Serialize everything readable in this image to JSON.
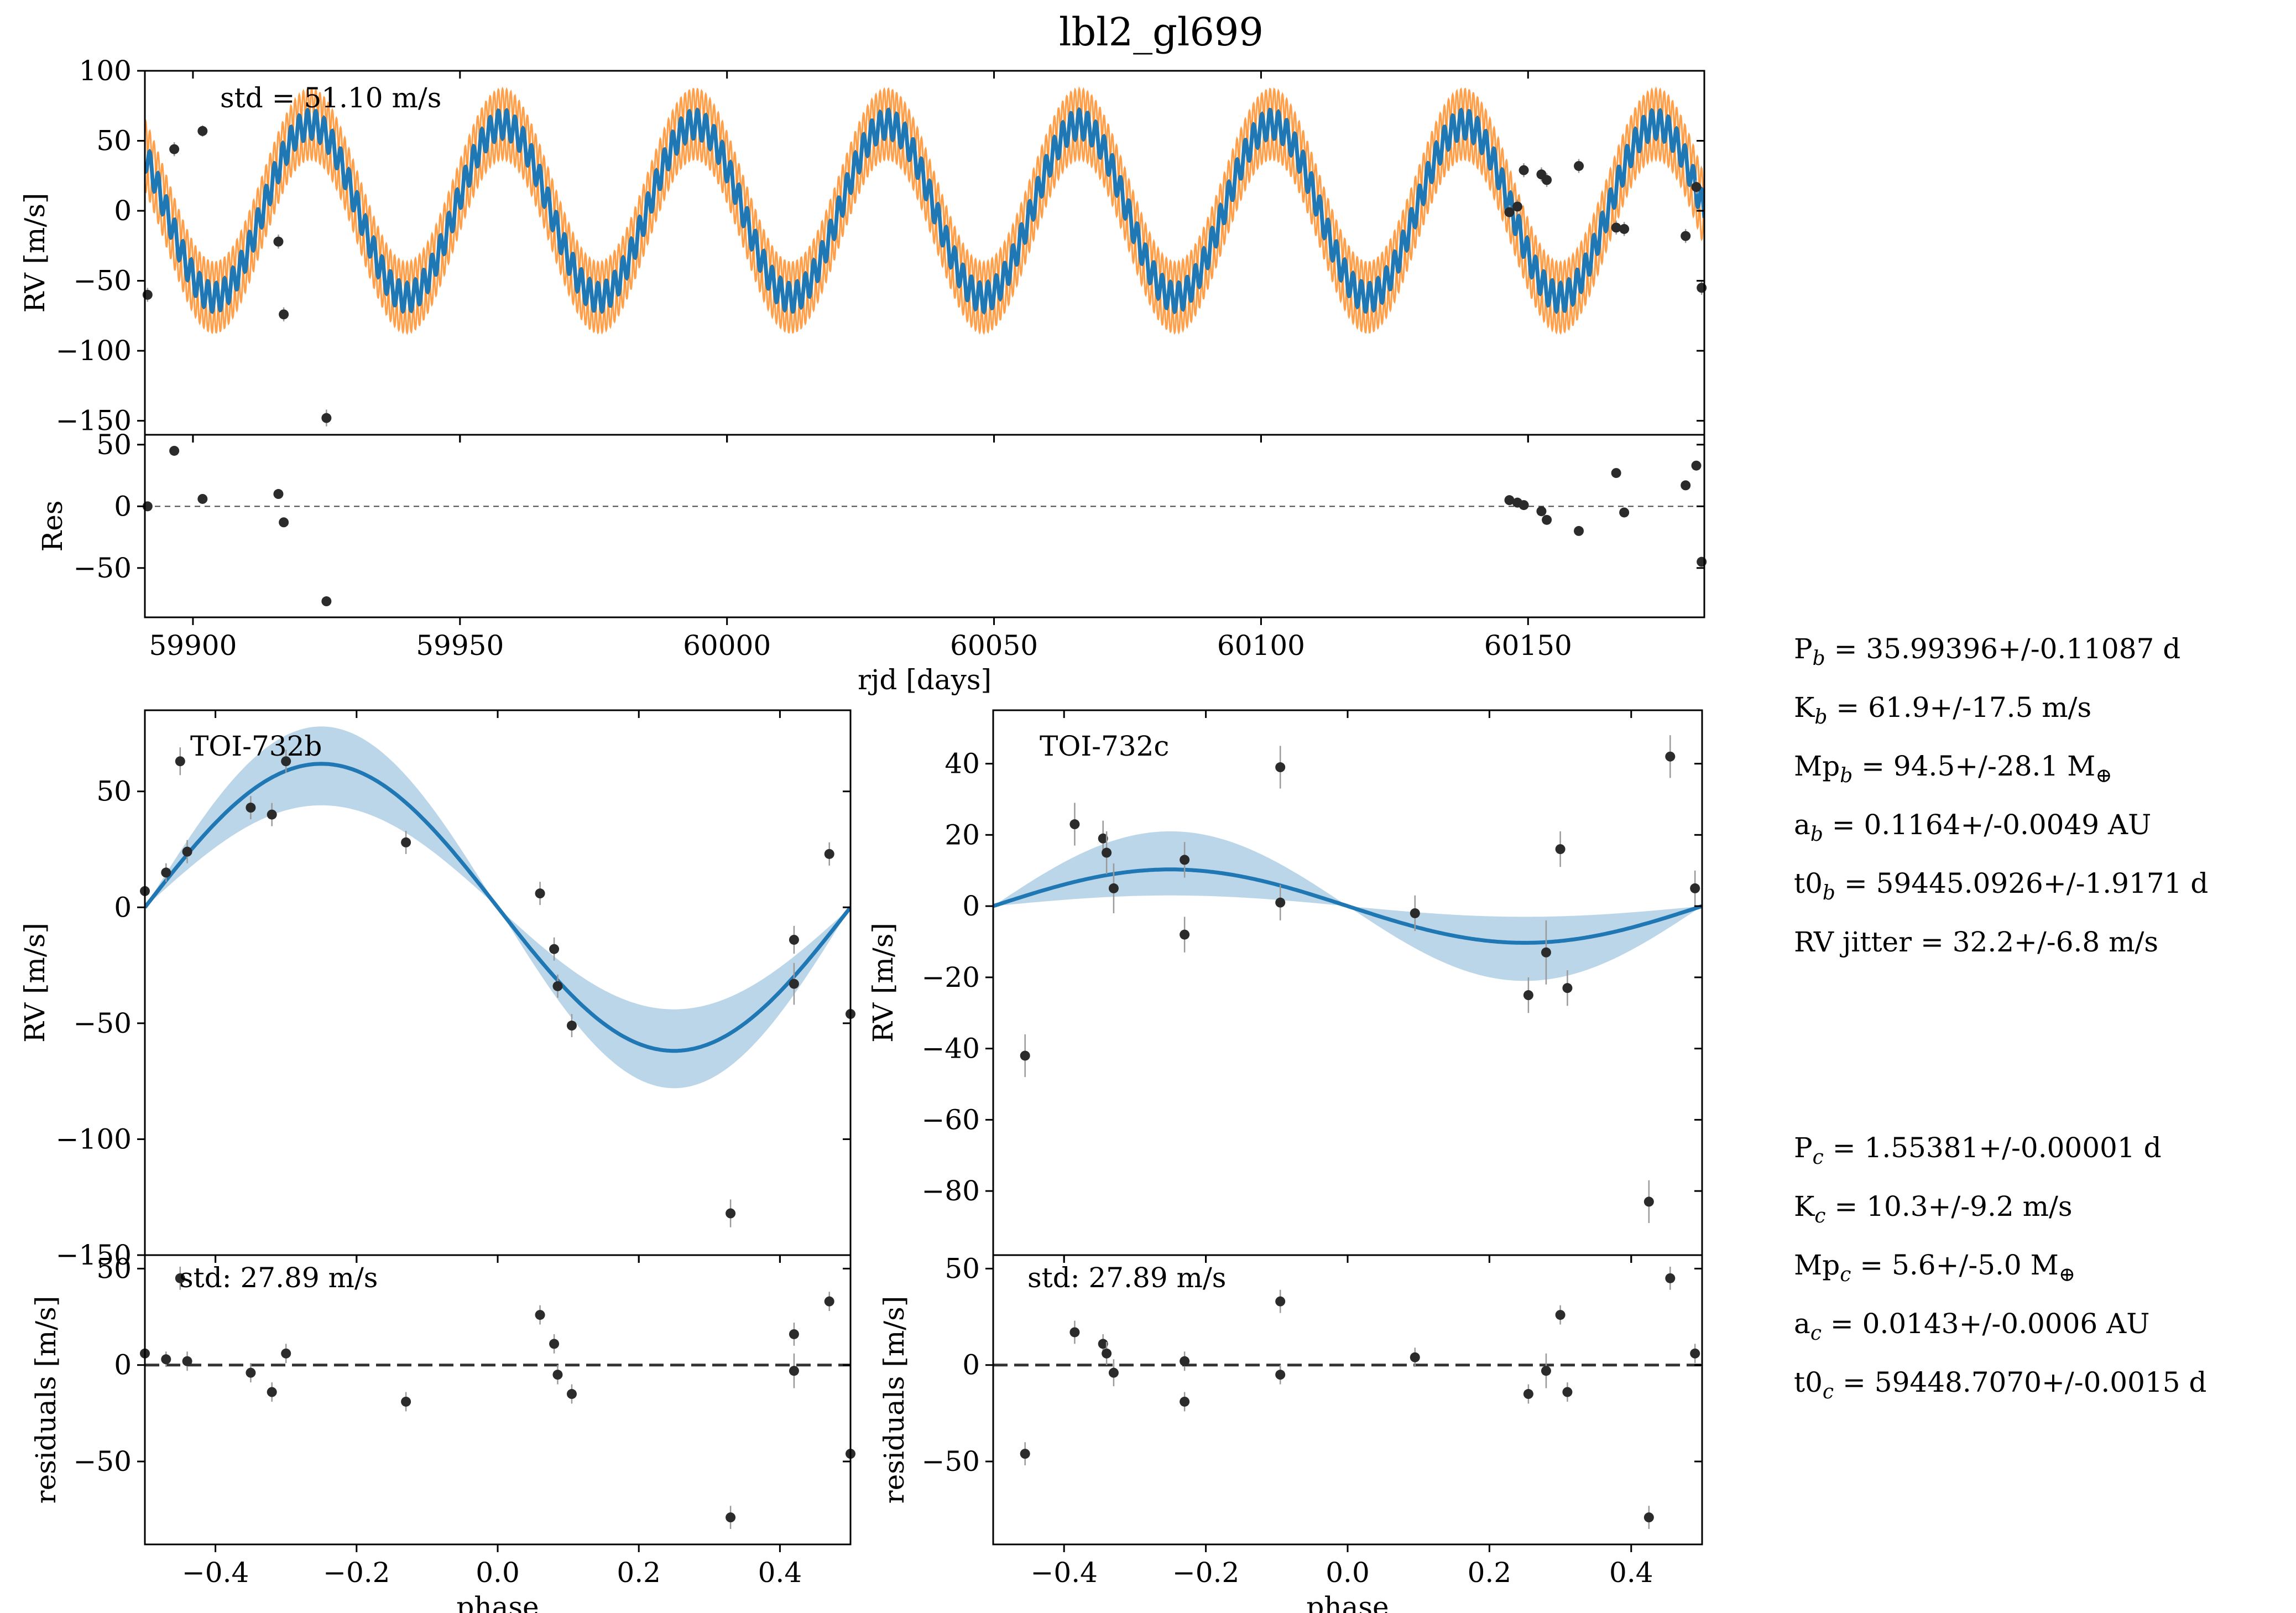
{
  "title": "lbl2_gl699",
  "colors": {
    "model": "#1f77b4",
    "band": "#ff7f0e",
    "shade": "#1f77b4",
    "points": "#2b2b2b"
  },
  "chart_data": [
    {
      "id": "rv_time",
      "type": "line",
      "xlabel": "",
      "ylabel": "RV [m/s]",
      "xlim": [
        59891,
        60183
      ],
      "ylim": [
        -160,
        100
      ],
      "xticks": [
        59900,
        59950,
        60000,
        60050,
        60100,
        60150
      ],
      "xtick_labels": [
        "",
        "",
        "",
        "",
        "",
        ""
      ],
      "yticks": [
        100,
        50,
        0,
        -50,
        -100,
        -150
      ],
      "ytick_labels": [
        "100",
        "50",
        "0",
        "−50",
        "−100",
        "−150"
      ],
      "annotation": "std = 51.10 m/s",
      "model": {
        "offset": 0,
        "Kb": 61.9,
        "Pb": 35.99396,
        "t0b": 59445.0926,
        "Kc": 10.3,
        "Pc": 1.55381,
        "t0c": 59448.707,
        "band": 15
      },
      "points": [
        {
          "x": 59891.5,
          "y": -60,
          "err": 5
        },
        {
          "x": 59896.5,
          "y": 44,
          "err": 5
        },
        {
          "x": 59901.8,
          "y": 57,
          "err": 4
        },
        {
          "x": 59916.0,
          "y": -22,
          "err": 5
        },
        {
          "x": 59917.0,
          "y": -74,
          "err": 5
        },
        {
          "x": 59925.0,
          "y": -148,
          "err": 6
        },
        {
          "x": 60146.5,
          "y": -1,
          "err": 5
        },
        {
          "x": 60148.0,
          "y": 3,
          "err": 5
        },
        {
          "x": 60149.2,
          "y": 29,
          "err": 5
        },
        {
          "x": 60152.5,
          "y": 26,
          "err": 5
        },
        {
          "x": 60153.5,
          "y": 22,
          "err": 5
        },
        {
          "x": 60159.5,
          "y": 32,
          "err": 5
        },
        {
          "x": 60166.5,
          "y": -12,
          "err": 5
        },
        {
          "x": 60168.0,
          "y": -13,
          "err": 5
        },
        {
          "x": 60179.5,
          "y": -18,
          "err": 5
        },
        {
          "x": 60181.5,
          "y": 17,
          "err": 5
        },
        {
          "x": 60182.5,
          "y": -55,
          "err": 5
        }
      ]
    },
    {
      "id": "res_time",
      "type": "scatter",
      "xlabel": "rjd [days]",
      "ylabel": "Res",
      "xlim": [
        59891,
        60183
      ],
      "ylim": [
        -90,
        58
      ],
      "xticks": [
        59900,
        59950,
        60000,
        60050,
        60100,
        60150
      ],
      "xtick_labels": [
        "59900",
        "59950",
        "60000",
        "60050",
        "60100",
        "60150"
      ],
      "yticks": [
        50,
        0,
        -50
      ],
      "ytick_labels": [
        "50",
        "0",
        "−50"
      ],
      "zero_line": true,
      "points": [
        {
          "x": 59891.5,
          "y": 0
        },
        {
          "x": 59896.5,
          "y": 45
        },
        {
          "x": 59901.8,
          "y": 6
        },
        {
          "x": 59916.0,
          "y": 10
        },
        {
          "x": 59917.0,
          "y": -13
        },
        {
          "x": 59925.0,
          "y": -77
        },
        {
          "x": 60146.5,
          "y": 5
        },
        {
          "x": 60148.0,
          "y": 3
        },
        {
          "x": 60149.2,
          "y": 1
        },
        {
          "x": 60152.5,
          "y": -4
        },
        {
          "x": 60153.5,
          "y": -11
        },
        {
          "x": 60159.5,
          "y": -20
        },
        {
          "x": 60166.5,
          "y": 27
        },
        {
          "x": 60168.0,
          "y": -5
        },
        {
          "x": 60179.5,
          "y": 17
        },
        {
          "x": 60181.5,
          "y": 33
        },
        {
          "x": 60182.5,
          "y": -45
        }
      ]
    },
    {
      "id": "phase_b",
      "type": "line",
      "xlabel": "",
      "ylabel": "RV [m/s]",
      "xlim": [
        -0.5,
        0.5
      ],
      "ylim": [
        -150,
        85
      ],
      "xticks": [
        -0.4,
        -0.2,
        0.0,
        0.2,
        0.4
      ],
      "xtick_labels": [
        "",
        "",
        "",
        "",
        ""
      ],
      "yticks": [
        50,
        0,
        -50,
        -100,
        -150
      ],
      "ytick_labels": [
        "50",
        "0",
        "−50",
        "−100",
        "−150"
      ],
      "annotation": "TOI-732b",
      "model": {
        "K": 61.9,
        "K_hi": 78,
        "K_lo": 44
      },
      "points": [
        {
          "x": -0.5,
          "y": 7,
          "err": 5
        },
        {
          "x": -0.47,
          "y": 15,
          "err": 4
        },
        {
          "x": -0.45,
          "y": 63,
          "err": 6
        },
        {
          "x": -0.44,
          "y": 24,
          "err": 5
        },
        {
          "x": -0.35,
          "y": 43,
          "err": 5
        },
        {
          "x": -0.32,
          "y": 40,
          "err": 5
        },
        {
          "x": -0.3,
          "y": 63,
          "err": 5
        },
        {
          "x": -0.13,
          "y": 28,
          "err": 5
        },
        {
          "x": 0.06,
          "y": 6,
          "err": 5
        },
        {
          "x": 0.08,
          "y": -18,
          "err": 5
        },
        {
          "x": 0.085,
          "y": -34,
          "err": 5
        },
        {
          "x": 0.105,
          "y": -51,
          "err": 5
        },
        {
          "x": 0.33,
          "y": -132,
          "err": 6
        },
        {
          "x": 0.42,
          "y": -14,
          "err": 6
        },
        {
          "x": 0.42,
          "y": -33,
          "err": 9
        },
        {
          "x": 0.47,
          "y": 23,
          "err": 5
        },
        {
          "x": 0.5,
          "y": -46,
          "err": 5
        }
      ]
    },
    {
      "id": "phase_c",
      "type": "line",
      "xlabel": "",
      "ylabel": "RV [m/s]",
      "xlim": [
        -0.5,
        0.5
      ],
      "ylim": [
        -98,
        55
      ],
      "xticks": [
        -0.4,
        -0.2,
        0.0,
        0.2,
        0.4
      ],
      "xtick_labels": [
        "",
        "",
        "",
        "",
        ""
      ],
      "yticks": [
        40,
        20,
        0,
        -20,
        -40,
        -60,
        -80
      ],
      "ytick_labels": [
        "40",
        "20",
        "0",
        "−20",
        "−40",
        "−60",
        "−80"
      ],
      "annotation": "TOI-732c",
      "model": {
        "K": 10.3,
        "K_hi": 21,
        "K_lo": 3
      },
      "points": [
        {
          "x": -0.455,
          "y": -42,
          "err": 6
        },
        {
          "x": -0.385,
          "y": 23,
          "err": 6
        },
        {
          "x": -0.345,
          "y": 19,
          "err": 5
        },
        {
          "x": -0.34,
          "y": 15,
          "err": 6
        },
        {
          "x": -0.33,
          "y": 5,
          "err": 7
        },
        {
          "x": -0.23,
          "y": 13,
          "err": 5
        },
        {
          "x": -0.23,
          "y": -8,
          "err": 5
        },
        {
          "x": -0.095,
          "y": 39,
          "err": 6
        },
        {
          "x": -0.095,
          "y": 1,
          "err": 5
        },
        {
          "x": 0.095,
          "y": -2,
          "err": 5
        },
        {
          "x": 0.255,
          "y": -25,
          "err": 5
        },
        {
          "x": 0.28,
          "y": -13,
          "err": 9
        },
        {
          "x": 0.3,
          "y": 16,
          "err": 5
        },
        {
          "x": 0.31,
          "y": -23,
          "err": 5
        },
        {
          "x": 0.425,
          "y": -83,
          "err": 6
        },
        {
          "x": 0.455,
          "y": 42,
          "err": 6
        },
        {
          "x": 0.49,
          "y": 5,
          "err": 5
        }
      ]
    },
    {
      "id": "res_b",
      "type": "scatter",
      "xlabel": "phase",
      "ylabel": "residuals [m/s]",
      "xlim": [
        -0.5,
        0.5
      ],
      "ylim": [
        -93,
        57
      ],
      "xticks": [
        -0.4,
        -0.2,
        0.0,
        0.2,
        0.4
      ],
      "xtick_labels": [
        "−0.4",
        "−0.2",
        "0.0",
        "0.2",
        "0.4"
      ],
      "yticks": [
        50,
        0,
        -50
      ],
      "ytick_labels": [
        "50",
        "0",
        "−50"
      ],
      "annotation": "std: 27.89 m/s",
      "zero_line": true,
      "points": [
        {
          "x": -0.5,
          "y": 6,
          "err": 5
        },
        {
          "x": -0.47,
          "y": 3,
          "err": 4
        },
        {
          "x": -0.45,
          "y": 45,
          "err": 6
        },
        {
          "x": -0.44,
          "y": 2,
          "err": 5
        },
        {
          "x": -0.35,
          "y": -4,
          "err": 5
        },
        {
          "x": -0.32,
          "y": -14,
          "err": 5
        },
        {
          "x": -0.3,
          "y": 6,
          "err": 5
        },
        {
          "x": -0.13,
          "y": -19,
          "err": 5
        },
        {
          "x": 0.06,
          "y": 26,
          "err": 5
        },
        {
          "x": 0.08,
          "y": 11,
          "err": 5
        },
        {
          "x": 0.085,
          "y": -5,
          "err": 5
        },
        {
          "x": 0.105,
          "y": -15,
          "err": 5
        },
        {
          "x": 0.33,
          "y": -79,
          "err": 6
        },
        {
          "x": 0.42,
          "y": 16,
          "err": 6
        },
        {
          "x": 0.42,
          "y": -3,
          "err": 9
        },
        {
          "x": 0.47,
          "y": 33,
          "err": 5
        },
        {
          "x": 0.5,
          "y": -46,
          "err": 5
        }
      ]
    },
    {
      "id": "res_c",
      "type": "scatter",
      "xlabel": "phase",
      "ylabel": "residuals [m/s]",
      "xlim": [
        -0.5,
        0.5
      ],
      "ylim": [
        -93,
        57
      ],
      "xticks": [
        -0.4,
        -0.2,
        0.0,
        0.2,
        0.4
      ],
      "xtick_labels": [
        "−0.4",
        "−0.2",
        "0.0",
        "0.2",
        "0.4"
      ],
      "yticks": [
        50,
        0,
        -50
      ],
      "ytick_labels": [
        "50",
        "0",
        "−50"
      ],
      "annotation": "std: 27.89 m/s",
      "zero_line": true,
      "points": [
        {
          "x": -0.455,
          "y": -46,
          "err": 6
        },
        {
          "x": -0.385,
          "y": 17,
          "err": 6
        },
        {
          "x": -0.345,
          "y": 11,
          "err": 5
        },
        {
          "x": -0.34,
          "y": 6,
          "err": 6
        },
        {
          "x": -0.33,
          "y": -4,
          "err": 7
        },
        {
          "x": -0.23,
          "y": 2,
          "err": 5
        },
        {
          "x": -0.23,
          "y": -19,
          "err": 5
        },
        {
          "x": -0.095,
          "y": 33,
          "err": 6
        },
        {
          "x": -0.095,
          "y": -5,
          "err": 5
        },
        {
          "x": 0.095,
          "y": 4,
          "err": 5
        },
        {
          "x": 0.255,
          "y": -15,
          "err": 5
        },
        {
          "x": 0.28,
          "y": -3,
          "err": 9
        },
        {
          "x": 0.3,
          "y": 26,
          "err": 5
        },
        {
          "x": 0.31,
          "y": -14,
          "err": 5
        },
        {
          "x": 0.425,
          "y": -79,
          "err": 6
        },
        {
          "x": 0.455,
          "y": 45,
          "err": 6
        },
        {
          "x": 0.49,
          "y": 6,
          "err": 5
        }
      ]
    }
  ],
  "params_b": [
    {
      "pre": "P",
      "sub": "b",
      "post": " = 35.99396+/-0.11087 d"
    },
    {
      "pre": "K",
      "sub": "b",
      "post": " = 61.9+/-17.5 m/s"
    },
    {
      "pre": "Mp",
      "sub": "b",
      "post": " = 94.5+/-28.1 M",
      "tail": "⊕"
    },
    {
      "pre": "a",
      "sub": "b",
      "post": " = 0.1164+/-0.0049 AU"
    },
    {
      "pre": "t0",
      "sub": "b",
      "post": " = 59445.0926+/-1.9171 d"
    },
    {
      "pre": "RV jitter",
      "sub": "",
      "post": " = 32.2+/-6.8 m/s"
    }
  ],
  "params_c": [
    {
      "pre": "P",
      "sub": "c",
      "post": " = 1.55381+/-0.00001 d"
    },
    {
      "pre": "K",
      "sub": "c",
      "post": " = 10.3+/-9.2 m/s"
    },
    {
      "pre": "Mp",
      "sub": "c",
      "post": " = 5.6+/-5.0 M",
      "tail": "⊕"
    },
    {
      "pre": "a",
      "sub": "c",
      "post": " = 0.0143+/-0.0006 AU"
    },
    {
      "pre": "t0",
      "sub": "c",
      "post": " = 59448.7070+/-0.0015 d"
    }
  ]
}
